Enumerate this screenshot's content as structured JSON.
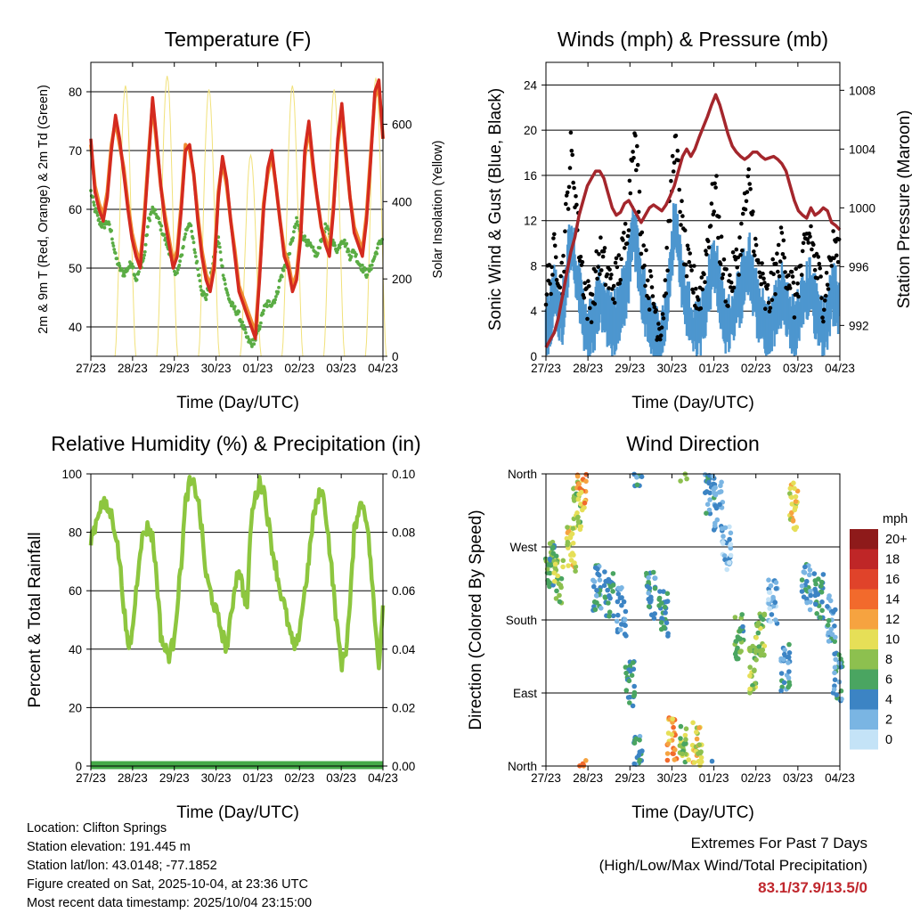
{
  "chart_data": [
    {
      "type": "line",
      "title": "Temperature (F)",
      "xlabel": "Time (Day/UTC)",
      "ylabel": "2m & 9m T (Red, Orange) & 2m Td (Green)",
      "ylabel_right": "Solar Insolation (Yellow)",
      "x_ticks": [
        "27/23",
        "28/23",
        "29/23",
        "30/23",
        "01/23",
        "02/23",
        "03/23",
        "04/23"
      ],
      "ylim": [
        35,
        85
      ],
      "y_ticks": [
        40,
        50,
        60,
        70,
        80
      ],
      "ylim_right": [
        0,
        760
      ],
      "y_ticks_right": [
        0,
        200,
        400,
        600
      ],
      "colors": {
        "t2m": "#d42a1f",
        "t9m": "#f08a30",
        "td": "#5aac44",
        "solar": "#f1e17a"
      },
      "series": [
        {
          "name": "2m T",
          "values": [
            72,
            63,
            60,
            58,
            62,
            70,
            76,
            72,
            66,
            60,
            55,
            52,
            50,
            58,
            68,
            79,
            72,
            64,
            58,
            54,
            50,
            52,
            60,
            70,
            71,
            66,
            58,
            52,
            48,
            46,
            50,
            62,
            69,
            65,
            58,
            52,
            46,
            44,
            42,
            40,
            38,
            48,
            60,
            67,
            70,
            64,
            58,
            52,
            50,
            46,
            48,
            55,
            70,
            75,
            68,
            62,
            57,
            54,
            52,
            60,
            72,
            78,
            70,
            62,
            56,
            54,
            52,
            58,
            68,
            80,
            82,
            72
          ]
        },
        {
          "name": "9m T",
          "values": [
            71,
            64,
            61,
            59,
            63,
            71,
            75,
            71,
            67,
            61,
            56,
            53,
            51,
            59,
            69,
            78,
            71,
            64,
            59,
            55,
            51,
            53,
            61,
            71,
            70,
            66,
            59,
            53,
            49,
            47,
            51,
            63,
            68,
            64,
            58,
            53,
            47,
            45,
            43,
            41,
            39,
            49,
            61,
            66,
            69,
            64,
            58,
            53,
            51,
            47,
            49,
            56,
            69,
            74,
            67,
            62,
            57,
            55,
            53,
            61,
            71,
            77,
            69,
            62,
            57,
            55,
            53,
            59,
            69,
            79,
            81,
            72
          ]
        },
        {
          "name": "2m Td",
          "values": [
            63,
            60,
            58,
            57,
            58,
            56,
            52,
            50,
            49,
            50,
            51,
            48,
            50,
            52,
            58,
            60,
            59,
            57,
            55,
            53,
            50,
            49,
            52,
            56,
            58,
            54,
            50,
            46,
            45,
            48,
            52,
            55,
            50,
            46,
            44,
            43,
            42,
            40,
            38,
            37,
            38,
            40,
            43,
            44,
            44,
            45,
            48,
            50,
            52,
            55,
            58,
            56,
            55,
            54,
            53,
            52,
            55,
            57,
            56,
            54,
            53,
            55,
            54,
            52,
            53,
            51,
            50,
            49,
            50,
            52,
            54,
            55
          ]
        },
        {
          "name": "Solar Insolation",
          "days": [
            0.83,
            1.83,
            2.83,
            3.83,
            4.83,
            5.83,
            6.83
          ],
          "peaks": [
            700,
            725,
            690,
            520,
            700,
            690,
            720
          ]
        }
      ]
    },
    {
      "type": "scatter",
      "title": "Winds (mph) & Pressure (mb)",
      "xlabel": "Time (Day/UTC)",
      "ylabel": "Sonic Wind & Gust (Blue, Black)",
      "ylabel_right": "Station Pressure (Maroon)",
      "x_ticks": [
        "27/23",
        "28/23",
        "29/23",
        "30/23",
        "01/23",
        "02/23",
        "03/23",
        "04/23"
      ],
      "ylim": [
        0,
        26
      ],
      "y_ticks": [
        0,
        4,
        8,
        12,
        16,
        20,
        24
      ],
      "ylim_right": [
        989.9,
        1009.9
      ],
      "y_ticks_right": [
        992,
        996,
        1000,
        1004,
        1008
      ],
      "colors": {
        "wind": "#4d96cf",
        "gust": "#000000",
        "pressure": "#a4262c"
      },
      "series": [
        {
          "name": "Sonic Wind",
          "values": [
            3,
            4,
            6,
            5,
            4,
            8,
            11,
            9,
            6,
            4,
            3,
            3,
            4,
            6,
            5,
            4,
            3,
            4,
            5,
            6,
            8,
            12,
            10,
            7,
            5,
            4,
            3,
            2,
            2,
            4,
            8,
            12,
            10,
            7,
            5,
            4,
            3,
            3,
            4,
            6,
            8,
            9,
            6,
            4,
            3,
            4,
            5,
            6,
            8,
            9,
            7,
            5,
            4,
            3,
            3,
            4,
            5,
            6,
            5,
            4,
            3,
            4,
            5,
            6,
            7,
            5,
            4,
            3,
            4,
            6,
            6,
            5
          ]
        },
        {
          "name": "Gust",
          "values": [
            6,
            7,
            9,
            8,
            7,
            13,
            18,
            15,
            10,
            7,
            5,
            5,
            7,
            9,
            8,
            7,
            6,
            7,
            8,
            10,
            13,
            20,
            17,
            11,
            8,
            6,
            5,
            3,
            3,
            7,
            13,
            19,
            16,
            11,
            8,
            7,
            6,
            5,
            7,
            10,
            13,
            15,
            10,
            7,
            6,
            7,
            8,
            10,
            13,
            15,
            12,
            8,
            7,
            5,
            5,
            7,
            8,
            10,
            8,
            7,
            5,
            7,
            8,
            10,
            11,
            8,
            7,
            5,
            7,
            9,
            10,
            8
          ]
        },
        {
          "name": "Station Pressure",
          "values": [
            990.5,
            991,
            991.5,
            992.5,
            994,
            995.5,
            997,
            998,
            999.5,
            1000.5,
            1001.5,
            1002,
            1002.5,
            1002.5,
            1002,
            1001,
            1000,
            999.5,
            999.7,
            1000.3,
            1000.5,
            1000,
            999.5,
            999,
            999.5,
            1000,
            1000.2,
            1000,
            999.8,
            1000.2,
            1000.8,
            1001.5,
            1002.5,
            1003.5,
            1004,
            1003.5,
            1004,
            1004.8,
            1005.5,
            1006.2,
            1007,
            1007.7,
            1007,
            1006,
            1005,
            1004.2,
            1003.8,
            1003.5,
            1003.3,
            1003.5,
            1003.8,
            1003.8,
            1003.5,
            1003.3,
            1003.4,
            1003.5,
            1003.3,
            1003,
            1002.5,
            1001.5,
            1000.5,
            999.8,
            999.5,
            999.3,
            1000,
            999.5,
            999.7,
            1000,
            999.8,
            999,
            998.8,
            998.5
          ]
        }
      ]
    },
    {
      "type": "line",
      "title": "Relative Humidity (%) & Precipitation (in)",
      "xlabel": "Time (Day/UTC)",
      "ylabel": "Percent & Total Rainfall",
      "x_ticks": [
        "27/23",
        "28/23",
        "29/23",
        "30/23",
        "01/23",
        "02/23",
        "03/23",
        "04/23"
      ],
      "ylim": [
        0,
        100
      ],
      "y_ticks": [
        0,
        20,
        40,
        60,
        80,
        100
      ],
      "ylim_right": [
        0,
        0.1
      ],
      "y_ticks_right": [
        "0.00",
        "0.02",
        "0.04",
        "0.06",
        "0.08",
        "0.10"
      ],
      "colors": {
        "rh": "#8dc63f",
        "precip": "#45a948"
      },
      "series": [
        {
          "name": "Relative Humidity",
          "values": [
            78,
            82,
            88,
            90,
            88,
            86,
            80,
            70,
            55,
            40,
            45,
            60,
            75,
            80,
            82,
            78,
            65,
            45,
            40,
            38,
            42,
            55,
            70,
            90,
            97,
            96,
            92,
            80,
            65,
            60,
            55,
            50,
            45,
            40,
            50,
            62,
            68,
            60,
            55,
            85,
            92,
            97,
            95,
            85,
            75,
            68,
            60,
            55,
            48,
            42,
            40,
            50,
            60,
            70,
            85,
            90,
            95,
            88,
            75,
            60,
            45,
            35,
            40,
            55,
            80,
            88,
            90,
            85,
            70,
            50,
            35,
            55
          ]
        },
        {
          "name": "Total Precipitation",
          "values": [
            0,
            0,
            0,
            0,
            0,
            0,
            0,
            0
          ]
        }
      ]
    },
    {
      "type": "scatter",
      "title": "Wind Direction",
      "xlabel": "Time (Day/UTC)",
      "ylabel": "Direction (Colored By Speed)",
      "x_ticks": [
        "27/23",
        "28/23",
        "29/23",
        "30/23",
        "01/23",
        "02/23",
        "03/23",
        "04/23"
      ],
      "y_ticks": [
        "North",
        "East",
        "South",
        "West",
        "North"
      ],
      "ylim": [
        0,
        360
      ],
      "legend": {
        "title": "mph",
        "labels": [
          "20+",
          "18",
          "16",
          "14",
          "12",
          "10",
          "8",
          "6",
          "4",
          "2",
          "0"
        ],
        "colors": [
          "#8e1a1a",
          "#bf2627",
          "#e0432a",
          "#f26a2c",
          "#f6a340",
          "#e6df57",
          "#8dc04f",
          "#4aa561",
          "#3c84c4",
          "#7ab5e3",
          "#c4e3f7"
        ]
      },
      "points_per_day": [
        {
          "day": 0.1,
          "dir": 250,
          "speed": 6
        },
        {
          "day": 0.3,
          "dir": 230,
          "speed": 8
        },
        {
          "day": 0.6,
          "dir": 270,
          "speed": 10
        },
        {
          "day": 0.75,
          "dir": 320,
          "speed": 8
        },
        {
          "day": 0.85,
          "dir": 345,
          "speed": 12
        },
        {
          "day": 1.2,
          "dir": 220,
          "speed": 4
        },
        {
          "day": 1.5,
          "dir": 210,
          "speed": 5
        },
        {
          "day": 1.8,
          "dir": 190,
          "speed": 3
        },
        {
          "day": 2.0,
          "dir": 100,
          "speed": 5
        },
        {
          "day": 2.2,
          "dir": 10,
          "speed": 4
        },
        {
          "day": 2.5,
          "dir": 210,
          "speed": 4
        },
        {
          "day": 2.8,
          "dir": 190,
          "speed": 5
        },
        {
          "day": 3.0,
          "dir": 30,
          "speed": 12
        },
        {
          "day": 3.3,
          "dir": 20,
          "speed": 8
        },
        {
          "day": 3.6,
          "dir": 25,
          "speed": 10
        },
        {
          "day": 3.9,
          "dir": 340,
          "speed": 4
        },
        {
          "day": 4.1,
          "dir": 320,
          "speed": 3
        },
        {
          "day": 4.3,
          "dir": 270,
          "speed": 2
        },
        {
          "day": 4.6,
          "dir": 160,
          "speed": 6
        },
        {
          "day": 4.9,
          "dir": 120,
          "speed": 8
        },
        {
          "day": 5.1,
          "dir": 160,
          "speed": 8
        },
        {
          "day": 5.4,
          "dir": 200,
          "speed": 2
        },
        {
          "day": 5.7,
          "dir": 120,
          "speed": 4
        },
        {
          "day": 5.9,
          "dir": 320,
          "speed": 10
        },
        {
          "day": 6.2,
          "dir": 220,
          "speed": 4
        },
        {
          "day": 6.5,
          "dir": 210,
          "speed": 5
        },
        {
          "day": 6.8,
          "dir": 180,
          "speed": 4
        },
        {
          "day": 6.95,
          "dir": 110,
          "speed": 4
        }
      ]
    }
  ],
  "station_info": [
    "Location: Clifton Springs",
    "Station elevation: 191.445 m",
    "Station lat/lon: 43.0148; -77.1852",
    "Figure created on Sat, 2025-10-04, at 23:36 UTC",
    "Most recent data timestamp: 2025/10/04 23:15:00"
  ],
  "extremes": {
    "title": "Extremes For Past 7 Days",
    "subtitle": "(High/Low/Max Wind/Total Precipitation)",
    "values": "83.1/37.9/13.5/0"
  }
}
